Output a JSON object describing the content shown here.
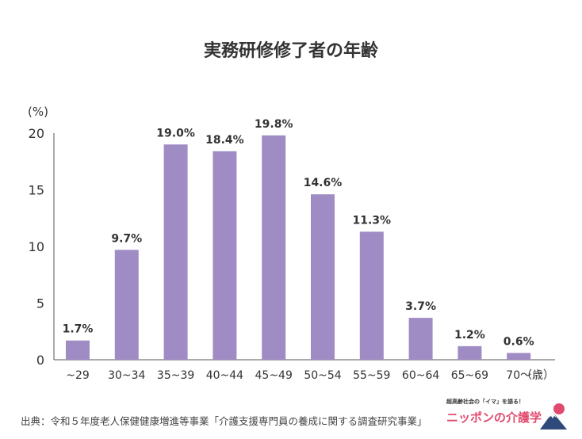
{
  "chart_data": {
    "type": "bar",
    "title": "実務研修修了者の年齢",
    "ylabel": "(%)",
    "xlabel_unit": "（歳）",
    "categories": [
      "~29",
      "30~34",
      "35~39",
      "40~44",
      "45~49",
      "50~54",
      "55~59",
      "60~64",
      "65~69",
      "70～"
    ],
    "values": [
      1.7,
      9.7,
      19.0,
      18.4,
      19.8,
      14.6,
      11.3,
      3.7,
      1.2,
      0.6
    ],
    "value_labels": [
      "1.7%",
      "9.7%",
      "19.0%",
      "18.4%",
      "19.8%",
      "14.6%",
      "11.3%",
      "3.7%",
      "1.2%",
      "0.6%"
    ],
    "ylim": [
      0,
      20
    ],
    "yticks": [
      "0",
      "5",
      "10",
      "15",
      "20"
    ],
    "grid": false,
    "bar_color": "#a08cc4"
  },
  "source": "出典：令和５年度老人保健健康増進等事業「介護支援専門員の養成に関する調査研究事業」",
  "logo": {
    "tagline": "超高齢社会の「イマ」を語る！",
    "name": "ニッポンの介護学"
  }
}
